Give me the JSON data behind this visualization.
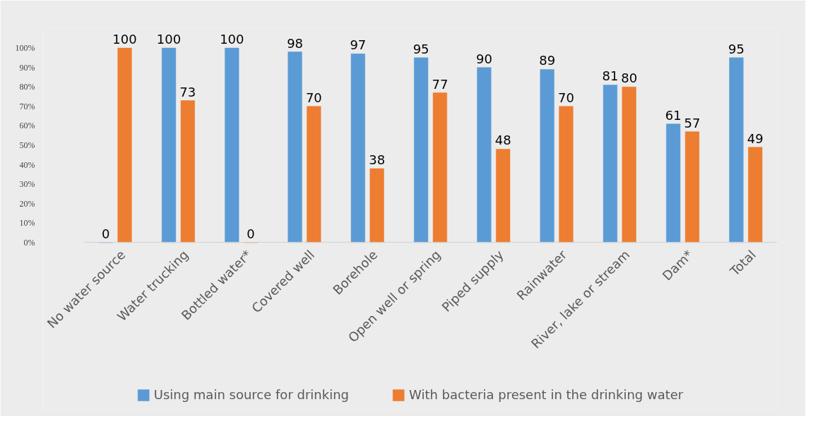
{
  "chart_data": {
    "type": "bar",
    "categories": [
      "No water source",
      "Water trucking",
      "Bottled water*",
      "Covered well",
      "Borehole",
      "Open well or spring",
      "Piped supply",
      "Rainwater",
      "River, lake or stream",
      "Dam*",
      "Total"
    ],
    "series": [
      {
        "name": "Using main source for drinking",
        "color": "#5b9bd5",
        "values": [
          0,
          100,
          100,
          98,
          97,
          95,
          90,
          89,
          81,
          61,
          95
        ]
      },
      {
        "name": "With bacteria present in the drinking water",
        "color": "#ed7d31",
        "values": [
          100,
          73,
          0,
          70,
          38,
          77,
          48,
          70,
          80,
          57,
          49
        ]
      }
    ],
    "ylim": [
      0,
      110
    ],
    "yticks": [
      {
        "value": 0,
        "label": "0%"
      },
      {
        "value": 10,
        "label": "10%"
      },
      {
        "value": 20,
        "label": "20%"
      },
      {
        "value": 30,
        "label": "30%"
      },
      {
        "value": 40,
        "label": "40%"
      },
      {
        "value": 50,
        "label": "50%"
      },
      {
        "value": 60,
        "label": "60%"
      },
      {
        "value": 70,
        "label": "70%"
      },
      {
        "value": 80,
        "label": "80%"
      },
      {
        "value": 90,
        "label": "90%"
      },
      {
        "value": 100,
        "label": "100%"
      }
    ],
    "data_labels": true,
    "grid": false,
    "legend": "bottom"
  }
}
